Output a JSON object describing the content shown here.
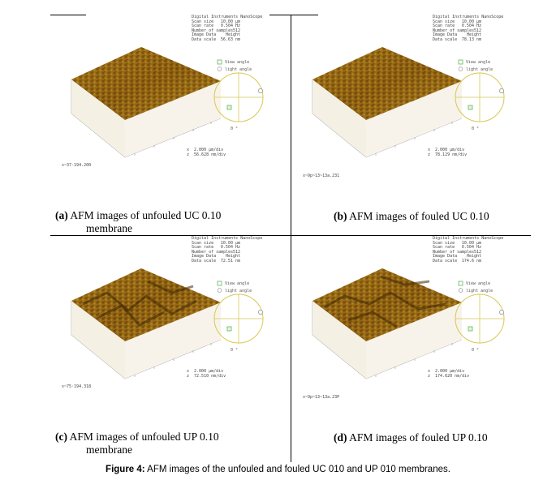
{
  "panels": [
    {
      "letter": "(a)",
      "caption_line1": "AFM images of unfouled UC 0.10",
      "caption_line2": "membrane",
      "info": {
        "title": "Digital Instruments NanoScope",
        "rows": [
          [
            "Scan size",
            "10.00 µm"
          ],
          [
            "Scan rate",
            "0.504 Hz"
          ],
          [
            "Number of samples",
            "512"
          ],
          [
            "Image Data",
            "Height"
          ],
          [
            "Data scale",
            "56.63 nm"
          ]
        ]
      },
      "scale_x": "x  2.000 µm/div",
      "scale_z": "z  56.628 nm/div",
      "file": "x~37·194.200"
    },
    {
      "letter": "(b)",
      "caption_line1": "AFM images of fouled UC 0.10",
      "caption_line2": "",
      "info": {
        "title": "Digital Instruments NanoScope",
        "rows": [
          [
            "Scan size",
            "10.00 µm"
          ],
          [
            "Scan rate",
            "0.504 Hz"
          ],
          [
            "Number of samples",
            "512"
          ],
          [
            "Image Data",
            "Height"
          ],
          [
            "Data scale",
            "78.13 nm"
          ]
        ]
      },
      "scale_x": "x  2.000 µm/div",
      "scale_z": "z  78.129 nm/div",
      "file": "x~9p~13~13a.231"
    },
    {
      "letter": "(c)",
      "caption_line1": "AFM images of unfouled UP 0.10",
      "caption_line2": "membrane",
      "info": {
        "title": "Digital Instruments NanoScope",
        "rows": [
          [
            "Scan size",
            "10.00 µm"
          ],
          [
            "Scan rate",
            "0.504 Hz"
          ],
          [
            "Number of samples",
            "512"
          ],
          [
            "Image Data",
            "Height"
          ],
          [
            "Data scale",
            "72.51 nm"
          ]
        ]
      },
      "scale_x": "x  2.000 µm/div",
      "scale_z": "z  72.510 nm/div",
      "file": "x~75·194.318"
    },
    {
      "letter": "(d)",
      "caption_line1": "AFM images of fouled UP 0.10",
      "caption_line2": "",
      "info": {
        "title": "Digital Instruments NanoScope",
        "rows": [
          [
            "Scan size",
            "10.00 µm"
          ],
          [
            "Scan rate",
            "0.504 Hz"
          ],
          [
            "Number of samples",
            "512"
          ],
          [
            "Image Data",
            "Height"
          ],
          [
            "Data scale",
            "174.6 nm"
          ]
        ]
      },
      "scale_x": "x  2.000 µm/div",
      "scale_z": "z  174.620 nm/div",
      "file": "x~9p~13~13a.23P"
    }
  ],
  "legend": {
    "view_angle": "View angle",
    "light_angle": "light angle"
  },
  "figure_caption": {
    "label": "Figure 4:",
    "text": " AFM images of the unfouled and fouled UC 010 and UP 010 membranes."
  },
  "colors": {
    "surface_dark": "#5a3a08",
    "surface_mid": "#9a6a12",
    "surface_light": "#c8a030",
    "legend_green": "#5fb85f",
    "legend_circle": "#d8c850"
  }
}
